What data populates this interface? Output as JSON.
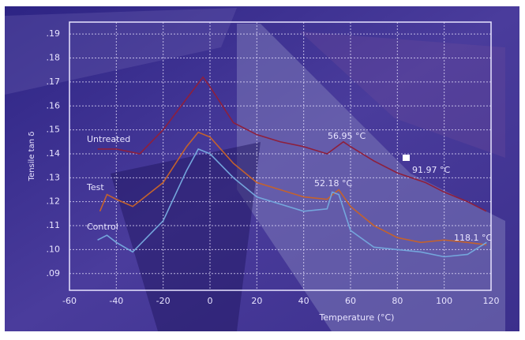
{
  "chart_data": {
    "type": "line",
    "xlabel": "Temperature (°C)",
    "ylabel": "Tensile tan δ",
    "xlim": [
      -60,
      120
    ],
    "ylim": [
      0.083,
      0.195
    ],
    "xticks": [
      -60,
      -40,
      -20,
      0,
      20,
      40,
      60,
      80,
      100,
      120
    ],
    "yticks": [
      {
        "value": 0.09,
        "label": ".09"
      },
      {
        "value": 0.1,
        "label": ".10"
      },
      {
        "value": 0.11,
        "label": ".11"
      },
      {
        "value": 0.12,
        "label": ".12"
      },
      {
        "value": 0.13,
        "label": ".13"
      },
      {
        "value": 0.14,
        "label": ".14"
      },
      {
        "value": 0.15,
        "label": ".15"
      },
      {
        "value": 0.16,
        "label": ".16"
      },
      {
        "value": 0.17,
        "label": ".17"
      },
      {
        "value": 0.18,
        "label": ".18"
      },
      {
        "value": 0.19,
        "label": ".19"
      }
    ],
    "grid": true,
    "series": [
      {
        "name": "Untreated",
        "color": "#8e1f3c",
        "x": [
          -48,
          -40,
          -30,
          -20,
          -10,
          -3,
          0,
          10,
          20,
          30,
          40,
          50,
          56.95,
          60,
          70,
          80,
          91.97,
          100,
          110,
          118
        ],
        "values": [
          0.142,
          0.142,
          0.14,
          0.15,
          0.163,
          0.172,
          0.168,
          0.153,
          0.148,
          0.145,
          0.143,
          0.14,
          0.145,
          0.143,
          0.137,
          0.132,
          0.128,
          0.124,
          0.12,
          0.116
        ]
      },
      {
        "name": "Test",
        "color": "#c4622c",
        "x": [
          -47,
          -44,
          -40,
          -33,
          -20,
          -10,
          -5,
          0,
          10,
          20,
          30,
          40,
          50,
          55,
          60,
          70,
          80,
          90,
          100,
          110,
          118
        ],
        "values": [
          0.116,
          0.123,
          0.121,
          0.118,
          0.128,
          0.143,
          0.149,
          0.147,
          0.136,
          0.128,
          0.125,
          0.122,
          0.121,
          0.125,
          0.118,
          0.11,
          0.105,
          0.103,
          0.104,
          0.103,
          0.102
        ]
      },
      {
        "name": "Control",
        "color": "#74a6dc",
        "x": [
          -48,
          -44,
          -40,
          -33,
          -20,
          -10,
          -5,
          0,
          10,
          20,
          30,
          40,
          50,
          52.18,
          55,
          60,
          70,
          80,
          90,
          100,
          110,
          118.1
        ],
        "values": [
          0.104,
          0.106,
          0.103,
          0.099,
          0.112,
          0.133,
          0.142,
          0.14,
          0.13,
          0.122,
          0.119,
          0.116,
          0.117,
          0.124,
          0.123,
          0.108,
          0.101,
          0.1,
          0.099,
          0.097,
          0.098,
          0.103
        ]
      }
    ],
    "annotations": [
      "56.95 °C",
      "91.97 °C",
      "52.18 °C",
      "118.1 °C"
    ]
  }
}
